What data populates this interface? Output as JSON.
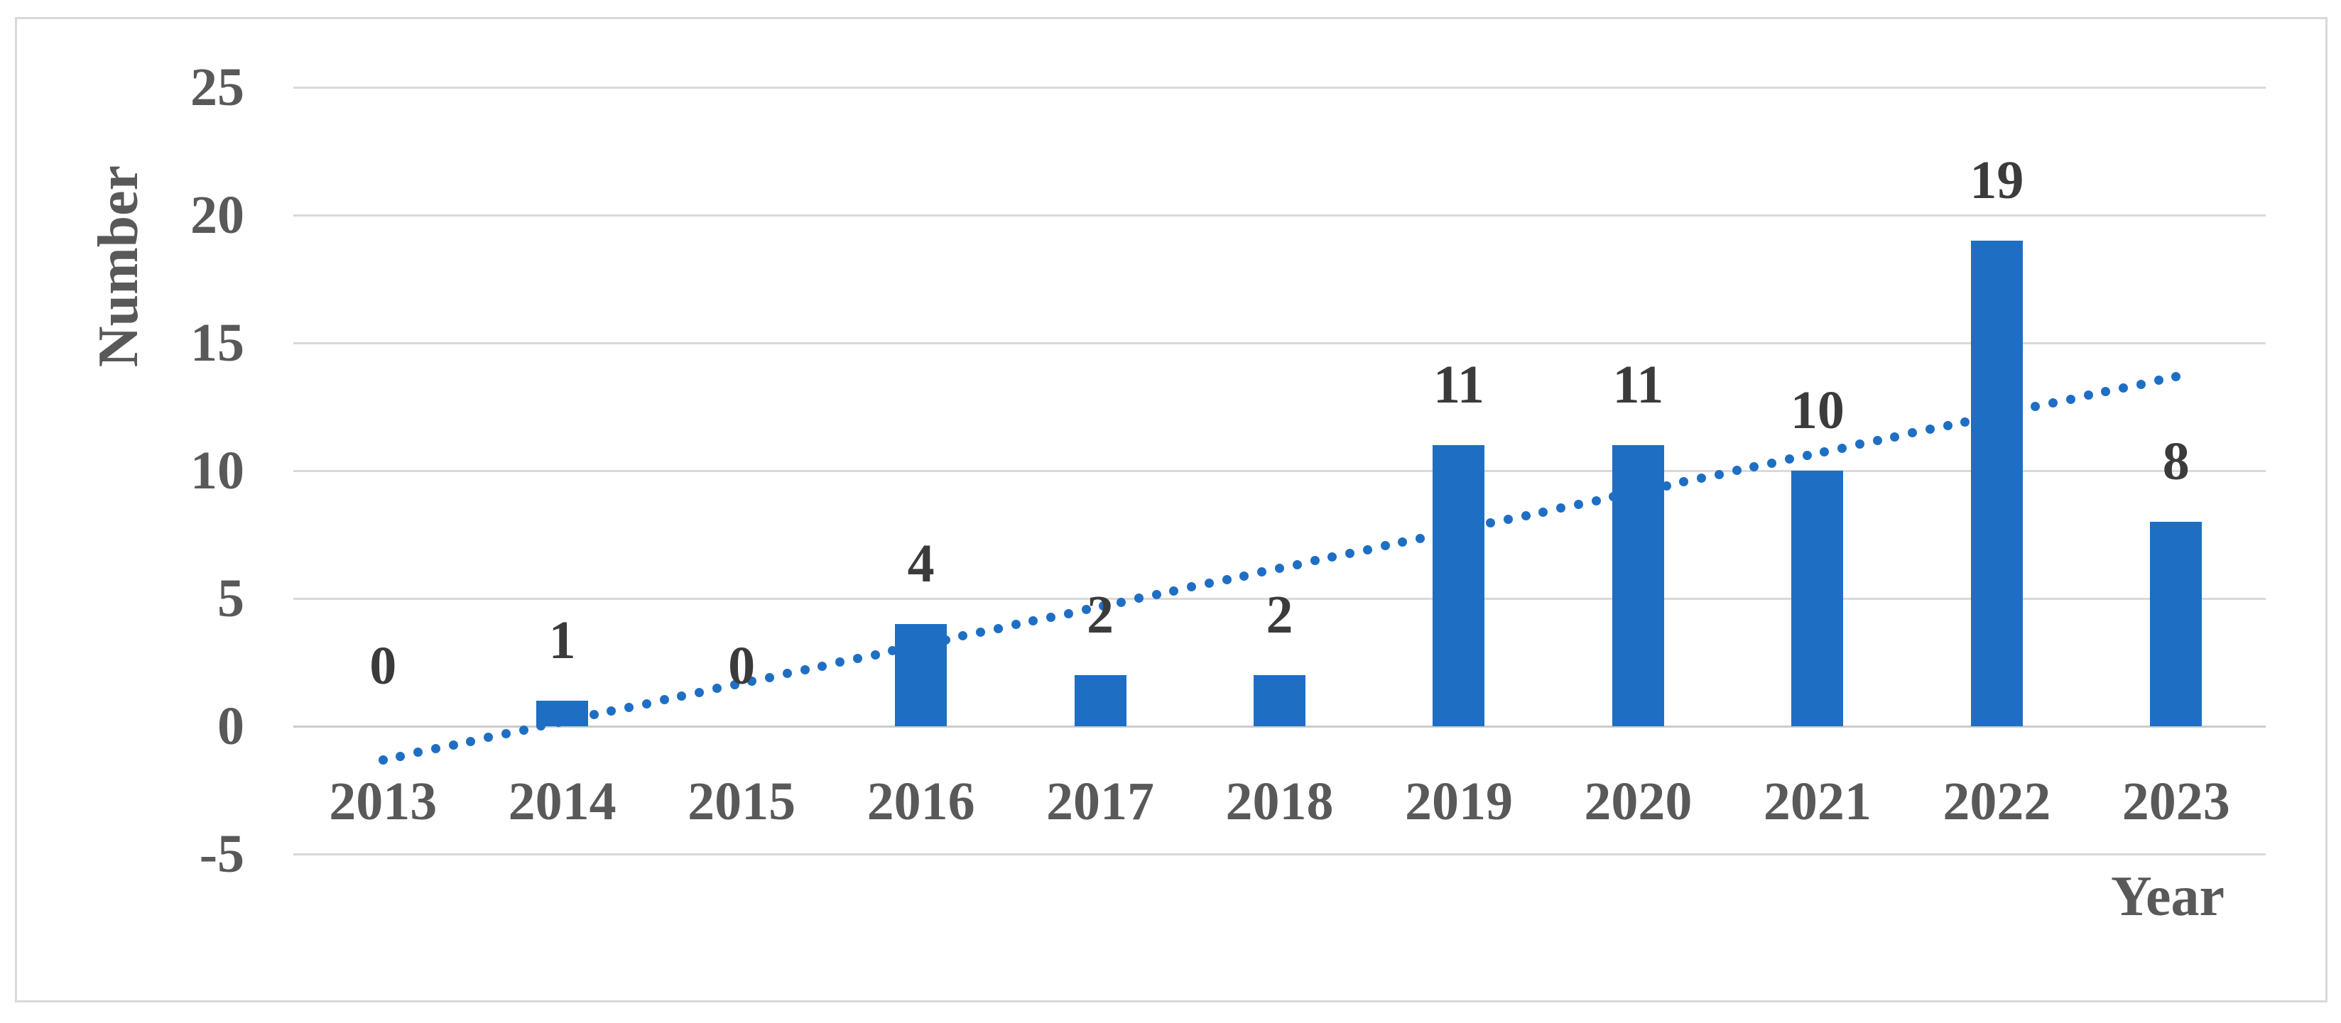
{
  "chart_data": {
    "type": "bar",
    "title": "",
    "categories": [
      "2013",
      "2014",
      "2015",
      "2016",
      "2017",
      "2018",
      "2019",
      "2020",
      "2021",
      "2022",
      "2023"
    ],
    "values": [
      0,
      1,
      0,
      4,
      2,
      2,
      11,
      11,
      10,
      19,
      8
    ],
    "xlabel": "Year",
    "ylabel": "Number",
    "ylim": [
      -5,
      25
    ],
    "yticks": [
      25,
      20,
      15,
      10,
      5,
      0,
      -5
    ],
    "grid": true,
    "legend_position": "none",
    "data_labels_shown": true,
    "bar_color": "#1E6FC4",
    "gridline_color": "#D9D9D9",
    "zero_line_color": "#CBCBCB",
    "axis_text_color": "#595959",
    "data_label_color": "#3B3B3B",
    "figure_border_color": "#D9D9D9",
    "background_color": "#FFFFFF",
    "trendline": {
      "type": "linear",
      "style": "dotted",
      "color": "#1E6FC4",
      "start_value": -1.32,
      "end_value": 13.68
    }
  }
}
